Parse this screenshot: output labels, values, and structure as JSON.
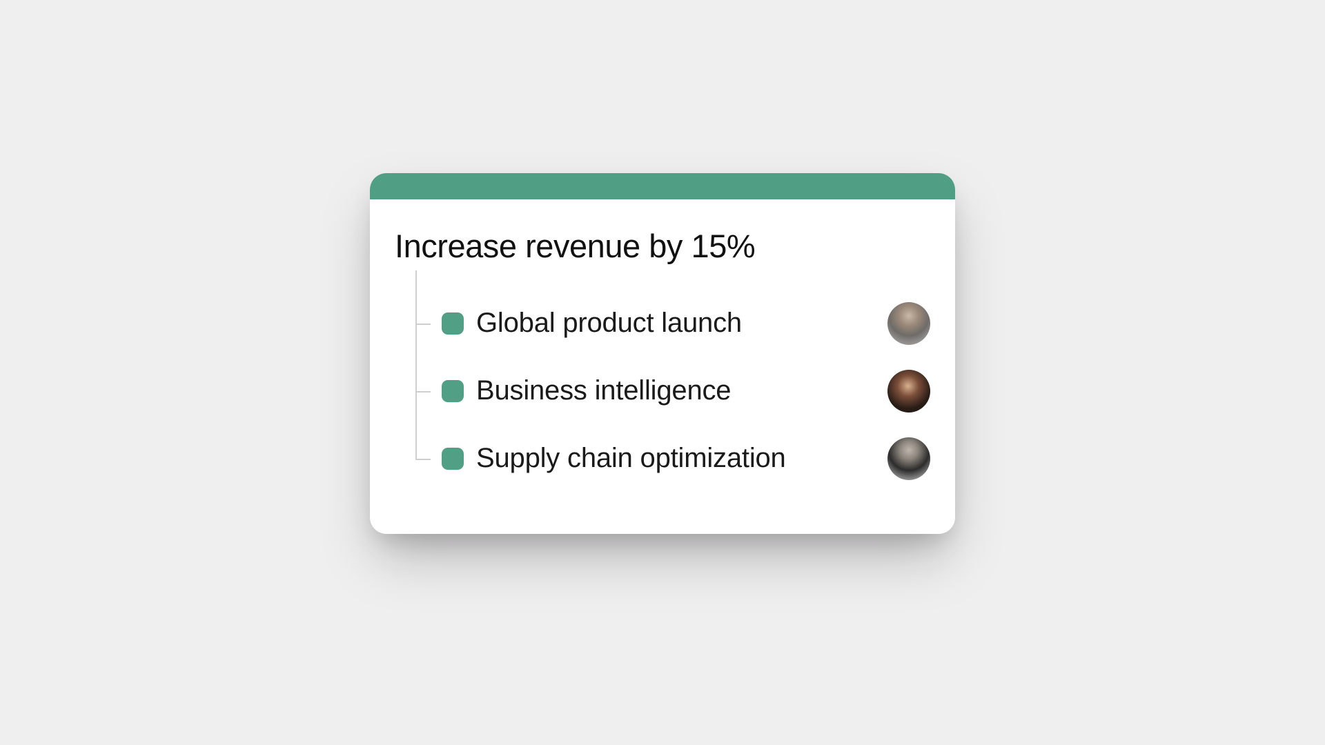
{
  "page": {
    "background_color": "#f0eff0"
  },
  "card": {
    "background_color": "#ffffff",
    "header_color": "#509e84",
    "title": "Increase revenue by 15%",
    "title_color": "#111111",
    "tree_line_color": "#cfcfcf",
    "items": [
      {
        "label": "Global product launch",
        "chip_color": "#51a086",
        "text_color": "#1a1a1a",
        "avatar_gradient": "radial-gradient(circle at 50% 32%, #c9b9a8 0%, #9d8b7b 26%, #6e6b68 55%, #bdbdbd 100%)"
      },
      {
        "label": "Business intelligence",
        "chip_color": "#51a086",
        "text_color": "#1a1a1a",
        "avatar_gradient": "radial-gradient(circle at 48% 38%, #d8b190 0%, #7c4f3a 30%, #2a1d17 65%, #1a1512 100%)"
      },
      {
        "label": "Supply chain optimization",
        "chip_color": "#51a086",
        "text_color": "#1a1a1a",
        "avatar_gradient": "radial-gradient(circle at 50% 30%, #bfb7ad 0%, #8e877f 24%, #2c2c2c 55%, #d9d9d9 100%)"
      }
    ]
  }
}
